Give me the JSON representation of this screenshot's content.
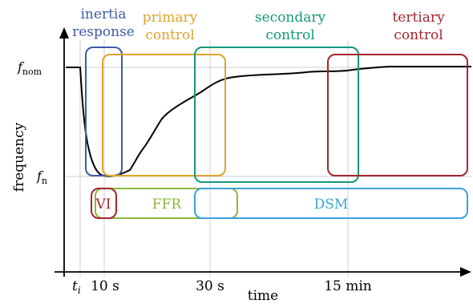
{
  "labels": {
    "inertia": [
      "inertia",
      "response"
    ],
    "primary": [
      "primary",
      "control"
    ],
    "secondary": [
      "secondary",
      "control"
    ],
    "tertiary": [
      "tertiary",
      "control"
    ],
    "vi": "VI",
    "ffr": "FFR",
    "dsm": "DSM",
    "y_axis": "frequency",
    "x_axis": "time",
    "f_nom": "f",
    "f_nom_sub": "nom",
    "f_n": "f",
    "f_n_sub": "n",
    "tick_ti": "t",
    "tick_ti_sub": "i",
    "tick_10s": "10 s",
    "tick_30s": "30 s",
    "tick_15min": "15 min"
  },
  "colors": {
    "inertia": "#3f5aa8",
    "primary": "#e0a32b",
    "secondary": "#14977d",
    "tertiary": "#a3262d",
    "vi": "#a3262d",
    "ffr": "#8cb83c",
    "dsm": "#3aa2d8",
    "curve": "#000000",
    "grid": "#cfcfcf"
  }
}
